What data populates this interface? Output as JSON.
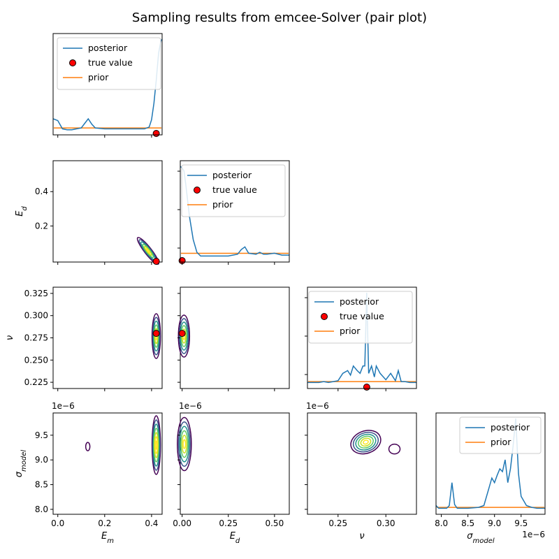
{
  "title": "Sampling results from emcee-Solver (pair plot)",
  "colors": {
    "posterior": "#1f77b4",
    "prior": "#ff7f0e",
    "true_value": "#ff0000",
    "contours": [
      "#440154",
      "#3b528b",
      "#21918c",
      "#5ec962",
      "#c8e020",
      "#fde725"
    ]
  },
  "params": [
    "E_m",
    "E_d",
    "nu",
    "sigma_model"
  ],
  "axis_labels": {
    "E_m": {
      "base": "E",
      "sub": "m"
    },
    "E_d": {
      "base": "E",
      "sub": "d"
    },
    "nu": {
      "base": "ν",
      "sub": ""
    },
    "sigma_model": {
      "base": "σ",
      "sub": "model"
    }
  },
  "offset_text": "1e−6",
  "legend": {
    "posterior": "posterior",
    "true_value": "true value",
    "prior": "prior"
  },
  "chart_data": {
    "type": "scatter",
    "kind": "pair plot (corner plot)",
    "title": "Sampling results from emcee-Solver (pair plot)",
    "true_values": {
      "E_m": 0.42,
      "E_d": 0.0,
      "nu": 0.28
    },
    "ranges": {
      "E_m": [
        -0.02,
        0.445
      ],
      "E_d": [
        -0.01,
        0.58
      ],
      "nu": [
        0.218,
        0.332
      ],
      "sigma_model": [
        7.9e-06,
        9.95e-06
      ]
    },
    "ticks": {
      "E_m": [
        0.0,
        0.2,
        0.4
      ],
      "E_d": [
        0.0,
        0.25,
        0.5
      ],
      "E_d_row": [
        0.2,
        0.4
      ],
      "nu": [
        0.25,
        0.3
      ],
      "nu_row": [
        0.225,
        0.25,
        0.275,
        0.3,
        0.325
      ],
      "sigma_model": [
        8.0,
        8.5,
        9.0,
        9.5
      ],
      "sigma_model_col": [
        8.0,
        8.5,
        9.0,
        9.5
      ]
    },
    "tick_labels": {
      "E_m": [
        "0.0",
        "0.2",
        "0.4"
      ],
      "E_d": [
        "0.00",
        "0.25",
        "0.50"
      ],
      "E_d_row": [
        "0.2",
        "0.4"
      ],
      "nu": [
        "0.25",
        "0.30"
      ],
      "nu_row": [
        "0.225",
        "0.250",
        "0.275",
        "0.300",
        "0.325"
      ],
      "sigma_model": [
        "8.0",
        "8.5",
        "9.0",
        "9.5"
      ],
      "sigma_model_col": [
        "8.0",
        "8.5",
        "9.0",
        "9.5"
      ]
    },
    "posteriors": {
      "E_m": {
        "x": [
          -0.02,
          0.0,
          0.02,
          0.04,
          0.06,
          0.08,
          0.1,
          0.115,
          0.13,
          0.145,
          0.16,
          0.2,
          0.25,
          0.3,
          0.34,
          0.37,
          0.39,
          0.4,
          0.41,
          0.42,
          0.43,
          0.44,
          0.445
        ],
        "y": [
          0.13,
          0.11,
          0.02,
          0.01,
          0.01,
          0.02,
          0.03,
          0.08,
          0.13,
          0.07,
          0.03,
          0.02,
          0.02,
          0.02,
          0.02,
          0.02,
          0.04,
          0.12,
          0.3,
          0.55,
          0.85,
          0.98,
          1.0
        ]
      },
      "E_d": {
        "x": [
          -0.01,
          0.0,
          0.01,
          0.02,
          0.04,
          0.06,
          0.08,
          0.1,
          0.15,
          0.2,
          0.25,
          0.3,
          0.32,
          0.34,
          0.36,
          0.4,
          0.42,
          0.44,
          0.46,
          0.5,
          0.54,
          0.58
        ],
        "y": [
          1.0,
          0.98,
          0.95,
          0.8,
          0.45,
          0.2,
          0.06,
          0.02,
          0.02,
          0.02,
          0.02,
          0.04,
          0.09,
          0.12,
          0.05,
          0.04,
          0.06,
          0.04,
          0.04,
          0.05,
          0.03,
          0.03
        ]
      },
      "nu": {
        "x": [
          0.218,
          0.225,
          0.23,
          0.235,
          0.24,
          0.245,
          0.25,
          0.255,
          0.26,
          0.263,
          0.266,
          0.27,
          0.273,
          0.276,
          0.278,
          0.28,
          0.282,
          0.285,
          0.288,
          0.29,
          0.294,
          0.3,
          0.305,
          0.31,
          0.313,
          0.316,
          0.32,
          0.325,
          0.332
        ],
        "y": [
          0.02,
          0.02,
          0.02,
          0.03,
          0.02,
          0.03,
          0.04,
          0.12,
          0.15,
          0.1,
          0.2,
          0.15,
          0.12,
          0.2,
          0.2,
          1.0,
          0.12,
          0.2,
          0.08,
          0.2,
          0.12,
          0.05,
          0.12,
          0.04,
          0.15,
          0.03,
          0.03,
          0.02,
          0.02
        ]
      },
      "sigma_model": {
        "x": [
          7.9,
          7.95,
          8.0,
          8.1,
          8.15,
          8.2,
          8.25,
          8.3,
          8.5,
          8.7,
          8.8,
          8.9,
          8.95,
          9.0,
          9.05,
          9.1,
          9.15,
          9.2,
          9.25,
          9.3,
          9.35,
          9.4,
          9.45,
          9.5,
          9.55,
          9.6,
          9.7,
          9.8,
          9.95
        ],
        "y": [
          0.05,
          0.02,
          0.02,
          0.02,
          0.05,
          0.3,
          0.06,
          0.02,
          0.02,
          0.03,
          0.05,
          0.25,
          0.35,
          0.3,
          0.38,
          0.45,
          0.42,
          0.55,
          0.3,
          0.45,
          0.7,
          1.0,
          0.4,
          0.15,
          0.1,
          0.05,
          0.03,
          0.02,
          0.02
        ]
      }
    },
    "prior_level": {
      "E_m": 0.03,
      "E_d": 0.05,
      "nu": 0.03,
      "sigma_model": 0.03
    },
    "contour_centers": [
      {
        "panel": "E_d vs E_m",
        "x": 0.42,
        "y": 0.0,
        "note": "elongated diagonal contours ending at (0.42, 0.0)"
      },
      {
        "panel": "nu vs E_m",
        "x": 0.42,
        "y": 0.28
      },
      {
        "panel": "nu vs E_d",
        "x": 0.0,
        "y": 0.28
      },
      {
        "panel": "sigma_model vs E_m",
        "x": 0.42,
        "y": 9.3,
        "extra_island": {
          "x": 0.13,
          "y": 9.25
        }
      },
      {
        "panel": "sigma_model vs E_d",
        "x": 0.0,
        "y": 9.3
      },
      {
        "panel": "sigma_model vs nu",
        "x": 0.28,
        "y": 9.4,
        "extra_island": {
          "x": 0.31,
          "y": 9.22
        }
      }
    ]
  }
}
